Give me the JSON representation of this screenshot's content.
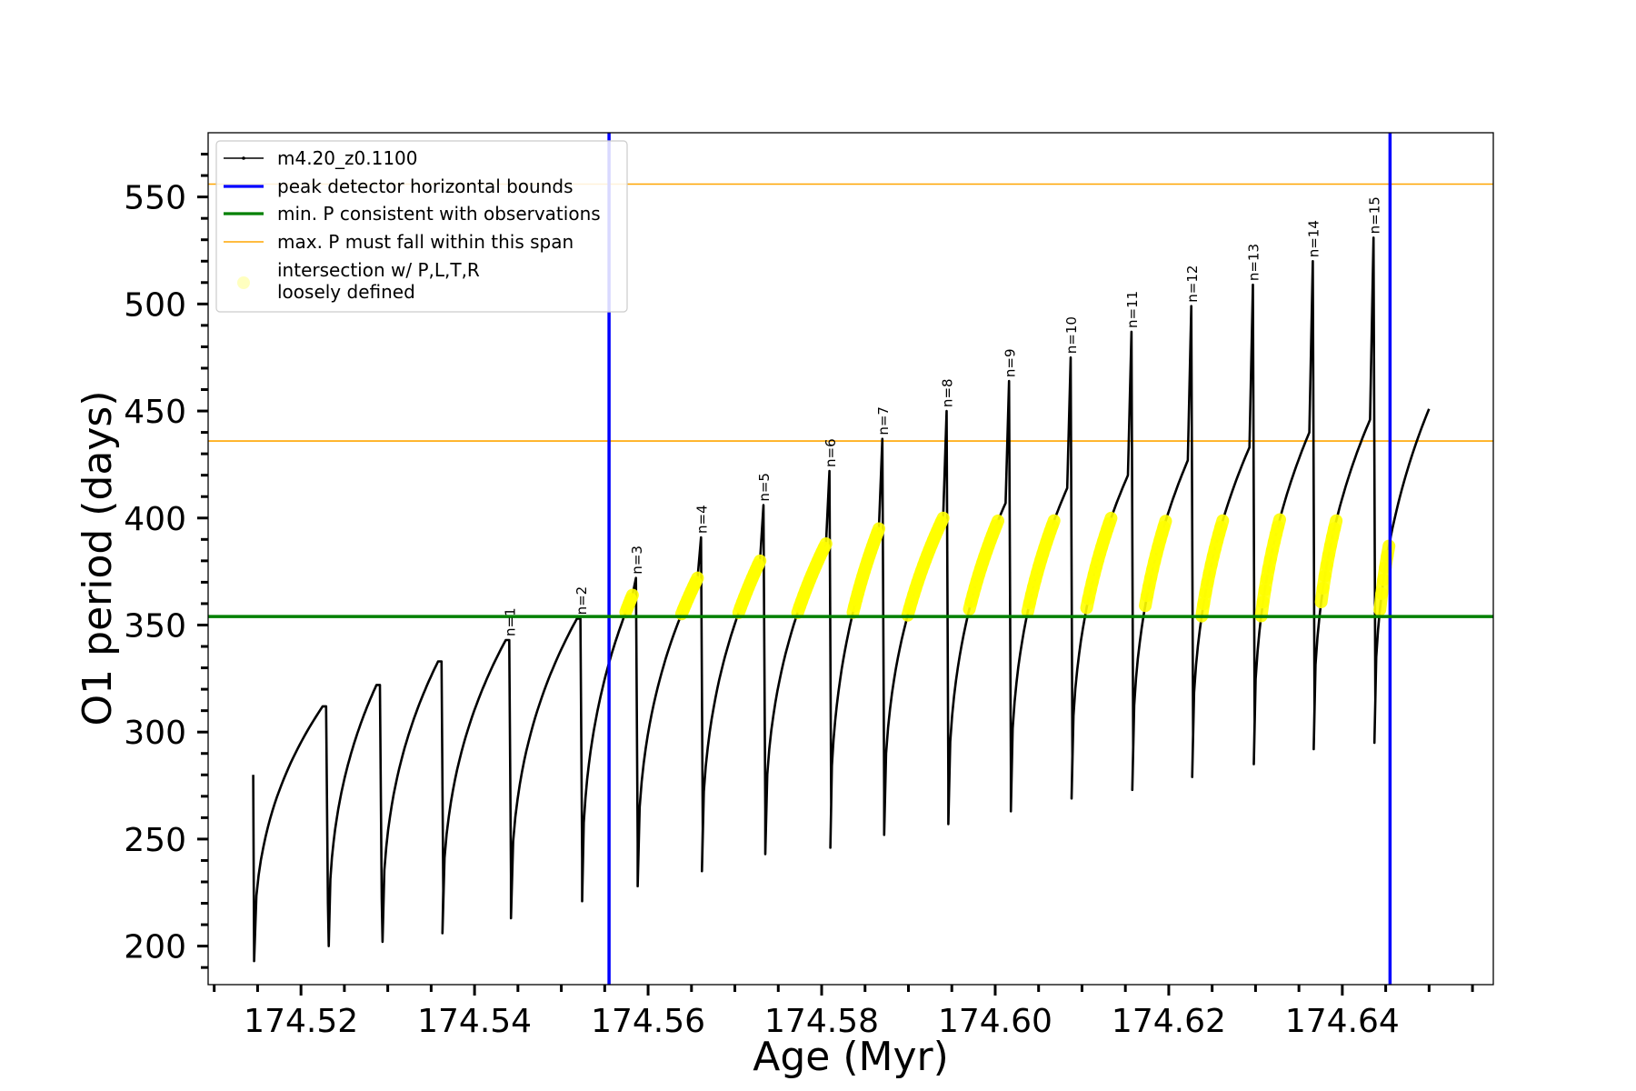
{
  "chart_data": {
    "type": "line",
    "xlabel": "Age (Myr)",
    "ylabel": "O1 period (days)",
    "xlim": [
      174.5093,
      174.6574
    ],
    "ylim": [
      182,
      580
    ],
    "x_ticks": [
      174.52,
      174.54,
      174.56,
      174.58,
      174.6,
      174.62,
      174.64
    ],
    "x_tick_labels": [
      "174.52",
      "174.54",
      "174.56",
      "174.58",
      "174.60",
      "174.62",
      "174.64"
    ],
    "y_ticks": [
      200,
      250,
      300,
      350,
      400,
      450,
      500,
      550
    ],
    "y_tick_labels": [
      "200",
      "250",
      "300",
      "350",
      "400",
      "450",
      "500",
      "550"
    ],
    "legend": {
      "position": "upper-left",
      "entries": [
        {
          "label": "m4.20_z0.1100",
          "kind": "line-marker",
          "color": "#000000"
        },
        {
          "label": "peak detector horizontal bounds",
          "kind": "line",
          "color": "#0000ff"
        },
        {
          "label": "min. P consistent with observations",
          "kind": "line",
          "color": "#008000"
        },
        {
          "label": "max. P must fall within this span",
          "kind": "line",
          "color": "#ffa500"
        },
        {
          "label_line1": "intersection w/ P,L,T,R",
          "label_line2": "loosely defined",
          "kind": "marker",
          "color": "#ffff00"
        }
      ]
    },
    "reference_lines": {
      "peak_bounds_x": [
        174.5555,
        174.6455
      ],
      "min_period_y": 354,
      "max_period_span_y": [
        436,
        556
      ]
    },
    "series_track": {
      "name": "m4.20_z0.1100",
      "start": {
        "x": 174.5145,
        "y_top": 280
      },
      "first_minimum": {
        "x": 174.5146,
        "y": 193
      },
      "end": {
        "x": 174.65,
        "y": 451
      },
      "cycles": [
        {
          "x_start": 174.5146,
          "y_min": 193,
          "x_peak": 174.5225,
          "y_peak": 312,
          "y_drop": 200
        },
        {
          "x_start": 174.5232,
          "y_min": 200,
          "x_peak": 174.5287,
          "y_peak": 322,
          "y_drop": 202
        },
        {
          "x_start": 174.5294,
          "y_min": 202,
          "x_peak": 174.5358,
          "y_peak": 333,
          "y_drop": 206
        },
        {
          "x_start": 174.5363,
          "y_min": 206,
          "x_peak": 174.5436,
          "y_peak": 343,
          "y_drop": 213
        },
        {
          "x_start": 174.5442,
          "y_min": 213,
          "x_peak": 174.5518,
          "y_peak": 353,
          "y_drop": 221
        },
        {
          "x_start": 174.5524,
          "y_min": 221,
          "x_peak": 174.5582,
          "y_peak": 364,
          "y_drop": 228
        },
        {
          "x_start": 174.5588,
          "y_min": 228,
          "x_peak": 174.5657,
          "y_peak": 372,
          "y_drop": 235
        },
        {
          "x_start": 174.5662,
          "y_min": 235,
          "x_peak": 174.5729,
          "y_peak": 380,
          "y_drop": 243
        },
        {
          "x_start": 174.5735,
          "y_min": 243,
          "x_peak": 174.5805,
          "y_peak": 388,
          "y_drop": 246
        },
        {
          "x_start": 174.581,
          "y_min": 246,
          "x_peak": 174.5866,
          "y_peak": 395,
          "y_drop": 252
        },
        {
          "x_start": 174.5872,
          "y_min": 252,
          "x_peak": 174.594,
          "y_peak": 400,
          "y_drop": 257
        },
        {
          "x_start": 174.5946,
          "y_min": 257,
          "x_peak": 174.6012,
          "y_peak": 407,
          "y_drop": 263
        },
        {
          "x_start": 174.6018,
          "y_min": 263,
          "x_peak": 174.6083,
          "y_peak": 414,
          "y_drop": 269
        },
        {
          "x_start": 174.6088,
          "y_min": 269,
          "x_peak": 174.6153,
          "y_peak": 420,
          "y_drop": 273
        },
        {
          "x_start": 174.6158,
          "y_min": 273,
          "x_peak": 174.6222,
          "y_peak": 427,
          "y_drop": 279
        },
        {
          "x_start": 174.6227,
          "y_min": 279,
          "x_peak": 174.6293,
          "y_peak": 433,
          "y_drop": 285
        },
        {
          "x_start": 174.6298,
          "y_min": 285,
          "x_peak": 174.6362,
          "y_peak": 440,
          "y_drop": 292
        },
        {
          "x_start": 174.6367,
          "y_min": 292,
          "x_peak": 174.6432,
          "y_peak": 446,
          "y_drop": 295
        },
        {
          "x_start": 174.6437,
          "y_min": 295,
          "x_peak": 174.65,
          "y_peak": 451
        }
      ]
    },
    "pulse_peaks": [
      {
        "label": "n=1",
        "x": 174.5436,
        "y_top": 343
      },
      {
        "label": "n=2",
        "x": 174.5518,
        "y_top": 353
      },
      {
        "label": "n=3",
        "x": 174.5582,
        "y_top": 372
      },
      {
        "label": "n=4",
        "x": 174.5657,
        "y_top": 391
      },
      {
        "label": "n=5",
        "x": 174.5729,
        "y_top": 406
      },
      {
        "label": "n=6",
        "x": 174.5805,
        "y_top": 422
      },
      {
        "label": "n=7",
        "x": 174.5866,
        "y_top": 437
      },
      {
        "label": "n=8",
        "x": 174.594,
        "y_top": 450
      },
      {
        "label": "n=9",
        "x": 174.6012,
        "y_top": 464
      },
      {
        "label": "n=10",
        "x": 174.6083,
        "y_top": 475
      },
      {
        "label": "n=11",
        "x": 174.6153,
        "y_top": 487
      },
      {
        "label": "n=12",
        "x": 174.6222,
        "y_top": 499
      },
      {
        "label": "n=13",
        "x": 174.6293,
        "y_top": 509
      },
      {
        "label": "n=14",
        "x": 174.6362,
        "y_top": 520
      },
      {
        "label": "n=15",
        "x": 174.6432,
        "y_top": 531
      }
    ]
  }
}
